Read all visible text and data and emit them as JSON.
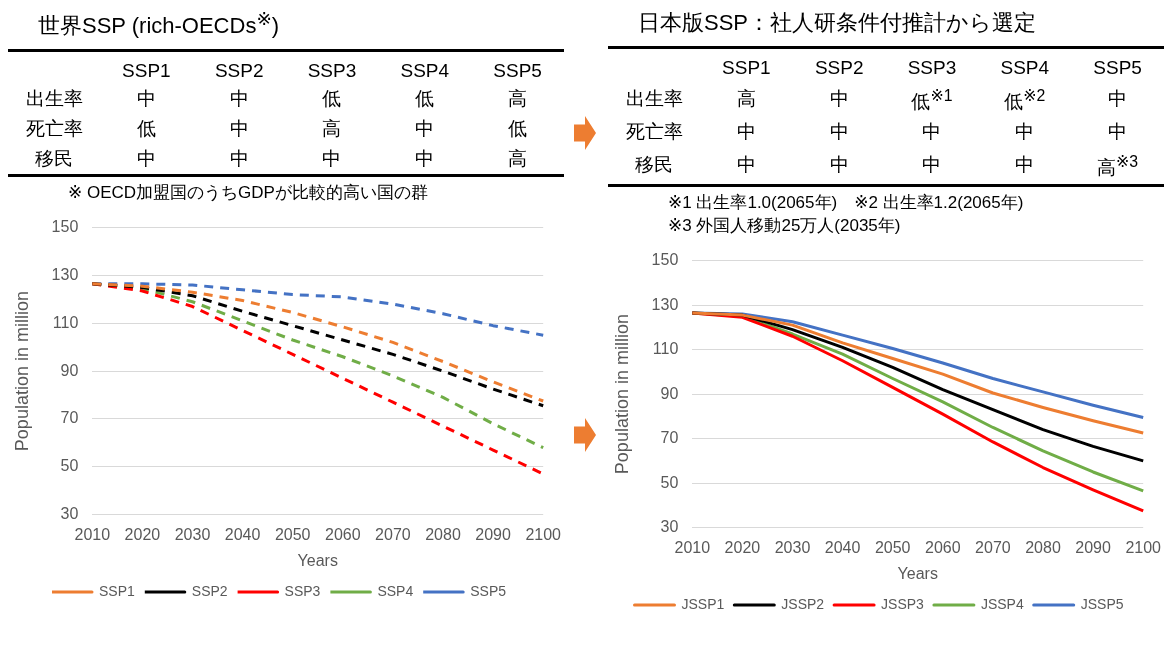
{
  "chart_data": [
    {
      "type": "other",
      "title": "世界SSP (rich-OECDs$^{※}$)",
      "categories": [
        "SSP1",
        "SSP2",
        "SSP3",
        "SSP4",
        "SSP5"
      ],
      "y_categories": [
        "出生率",
        "死亡率",
        "移民"
      ],
      "cell_labels": [
        [
          "中",
          "中",
          "低",
          "低",
          "高"
        ],
        [
          "低",
          "中",
          "高",
          "中",
          "低"
        ],
        [
          "中",
          "中",
          "中",
          "中",
          "高"
        ]
      ],
      "annotations": [
        "※ OECD加盟国のうちGDPが比較的高い国の群"
      ]
    },
    {
      "type": "line",
      "xlabel": "Years",
      "ylabel": "Population in million",
      "categories": [
        "2010",
        "2020",
        "2030",
        "2040",
        "2050",
        "2060",
        "2070",
        "2080",
        "2090",
        "2100"
      ],
      "ylim": [
        30,
        150
      ],
      "yticks": [
        30,
        50,
        70,
        90,
        110,
        130,
        150
      ],
      "grid": "y",
      "legend": "bottom",
      "line_style": "dashed",
      "marker": "none",
      "series": [
        {
          "name": "SSP1",
          "color": "#ed7d31",
          "values": [
            126.5,
            125.5,
            123,
            119.5,
            114.5,
            108.5,
            102,
            94,
            85.5,
            77.5
          ]
        },
        {
          "name": "SSP2",
          "color": "#000000",
          "values": [
            126.5,
            125,
            121.5,
            115,
            109,
            103,
            97,
            90,
            82.5,
            75.5
          ]
        },
        {
          "name": "SSP3",
          "color": "#ff0000",
          "values": [
            126.5,
            123.5,
            117,
            107,
            97,
            87,
            77,
            67,
            57,
            47
          ]
        },
        {
          "name": "SSP4",
          "color": "#70ad47",
          "values": [
            126.5,
            124.5,
            119,
            111,
            103,
            96,
            88,
            79,
            68,
            58
          ]
        },
        {
          "name": "SSP5",
          "color": "#4472c4",
          "values": [
            126.5,
            126.5,
            126,
            124,
            122,
            121,
            118,
            114,
            109,
            105
          ]
        }
      ]
    },
    {
      "type": "other",
      "title": "日本版SSP：社人研条件付推計から選定",
      "categories": [
        "SSP1",
        "SSP2",
        "SSP3",
        "SSP4",
        "SSP5"
      ],
      "y_categories": [
        "出生率",
        "死亡率",
        "移民"
      ],
      "cell_labels": [
        [
          "高",
          "中",
          "低$^{※1}$",
          "低$^{※2}$",
          "中"
        ],
        [
          "中",
          "中",
          "中",
          "中",
          "中"
        ],
        [
          "中",
          "中",
          "中",
          "中",
          "高$^{※3}$"
        ]
      ],
      "annotations": [
        "※1 出生率1.0(2065年)　※2 出生率1.2(2065年)",
        "※3 外国人移動25万人(2035年)"
      ]
    },
    {
      "type": "line",
      "xlabel": "Years",
      "ylabel": "Population in million",
      "categories": [
        "2010",
        "2020",
        "2030",
        "2040",
        "2050",
        "2060",
        "2070",
        "2080",
        "2090",
        "2100"
      ],
      "ylim": [
        30,
        150
      ],
      "yticks": [
        30,
        50,
        70,
        90,
        110,
        130,
        150
      ],
      "grid": "y",
      "legend": "bottom",
      "line_style": "solid",
      "marker": "none",
      "series": [
        {
          "name": "JSSP1",
          "color": "#ed7d31",
          "values": [
            126.5,
            125.5,
            121,
            113,
            106,
            99,
            90.5,
            84,
            78,
            72.5
          ]
        },
        {
          "name": "JSSP2",
          "color": "#000000",
          "values": [
            126.5,
            125.5,
            119,
            111,
            102,
            92,
            83,
            74,
            66.5,
            60
          ]
        },
        {
          "name": "JSSP3",
          "color": "#ff0000",
          "values": [
            126.5,
            124.5,
            116,
            105,
            93,
            81,
            68.5,
            57,
            47,
            37.5
          ]
        },
        {
          "name": "JSSP4",
          "color": "#70ad47",
          "values": [
            126.5,
            125,
            117,
            108,
            97,
            86.5,
            75,
            64.5,
            55,
            46.5
          ]
        },
        {
          "name": "JSSP5",
          "color": "#4472c4",
          "values": [
            126.5,
            126,
            122.5,
            116.5,
            110.5,
            104,
            97,
            91,
            85,
            79.5
          ]
        }
      ]
    }
  ]
}
